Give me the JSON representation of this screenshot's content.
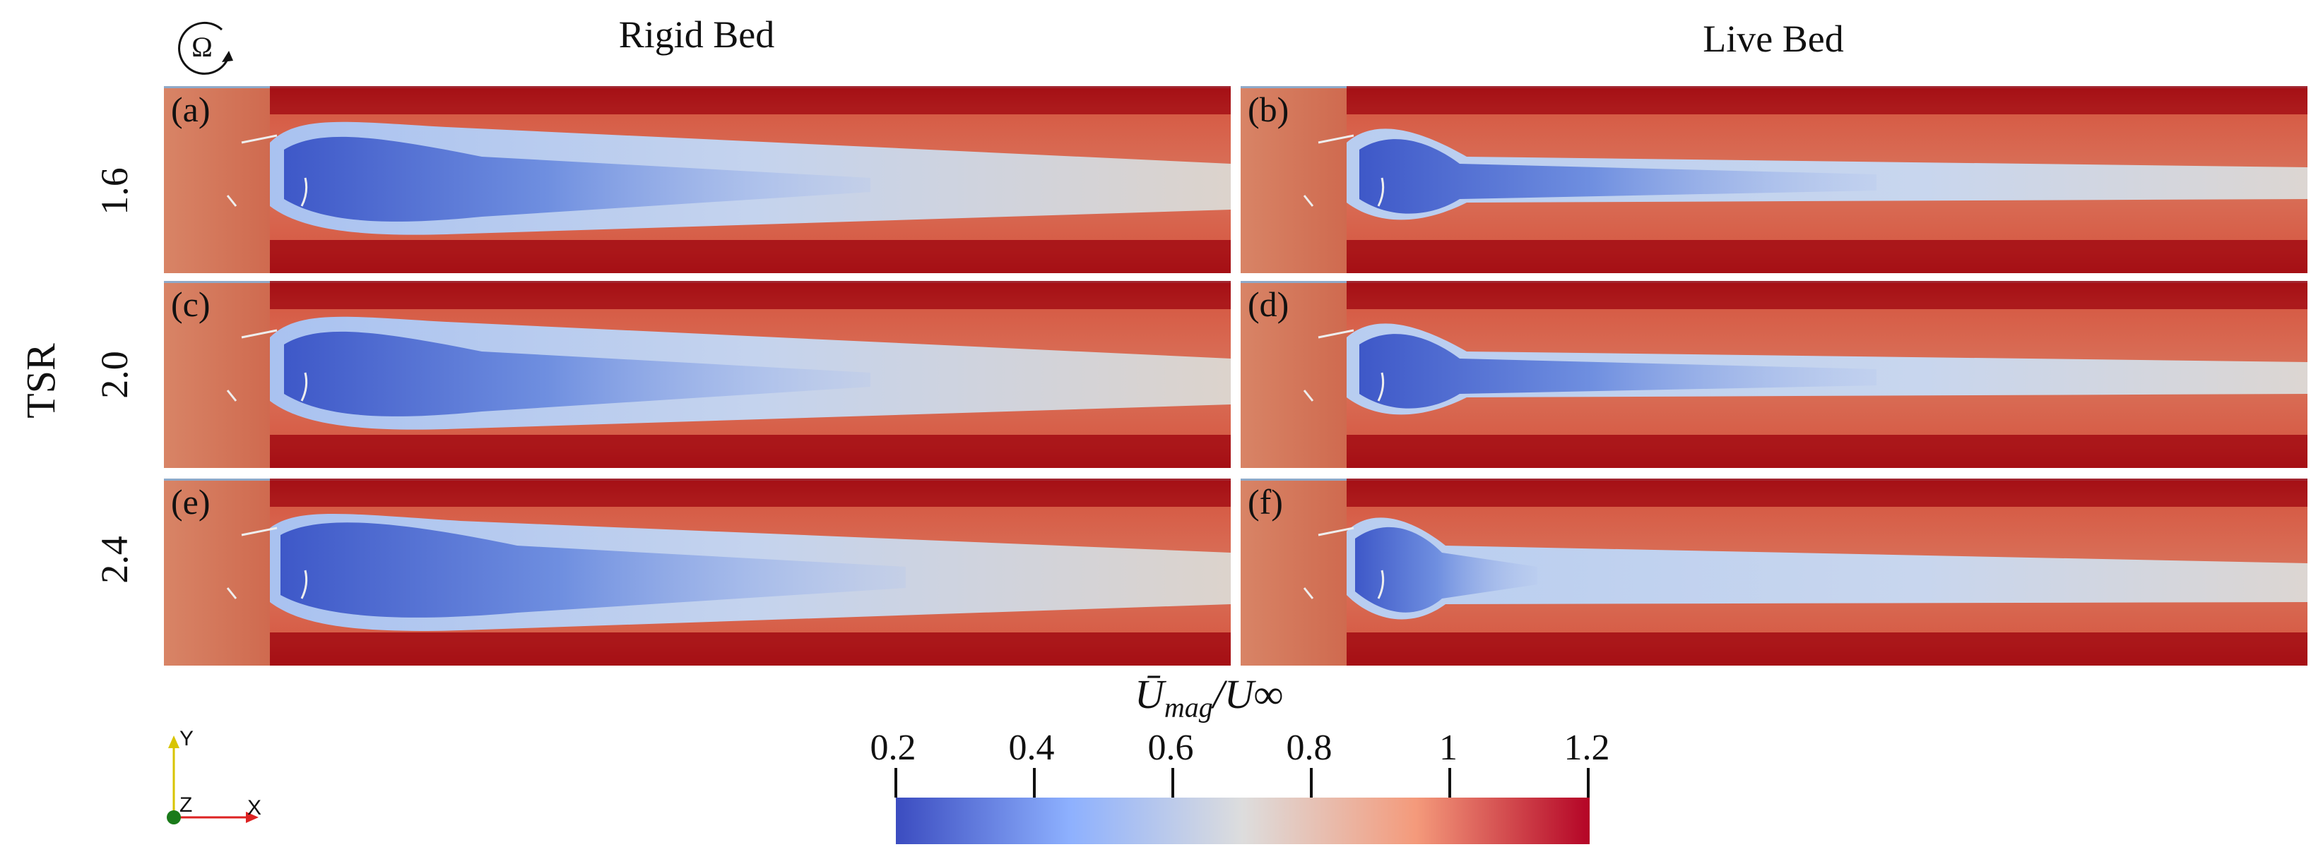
{
  "columns": [
    "Rigid Bed",
    "Live Bed"
  ],
  "tsr_label": "TSR",
  "rows": [
    "1.6",
    "2.0",
    "2.4"
  ],
  "panels": [
    {
      "letter": "(a)",
      "bed": "Rigid Bed",
      "tsr": "1.6"
    },
    {
      "letter": "(b)",
      "bed": "Live Bed",
      "tsr": "1.6"
    },
    {
      "letter": "(c)",
      "bed": "Rigid Bed",
      "tsr": "2.0"
    },
    {
      "letter": "(d)",
      "bed": "Live Bed",
      "tsr": "2.0"
    },
    {
      "letter": "(e)",
      "bed": "Rigid Bed",
      "tsr": "2.4"
    },
    {
      "letter": "(f)",
      "bed": "Live Bed",
      "tsr": "2.4"
    }
  ],
  "rotation_symbol": "Ω",
  "colorbar": {
    "title": "Ū mag / U∞",
    "title_base": "Ū",
    "title_sub": "mag",
    "title_tail": "/U∞",
    "ticks": [
      "0.2",
      "0.4",
      "0.6",
      "0.8",
      "1",
      "1.2"
    ],
    "range": [
      0.2,
      1.2
    ],
    "colors": [
      "#3b4cc0",
      "#8db0fe",
      "#dddddd",
      "#f49a7b",
      "#b40426"
    ]
  },
  "axes_triad": {
    "y": "Y",
    "z": "Z",
    "x": "X"
  }
}
